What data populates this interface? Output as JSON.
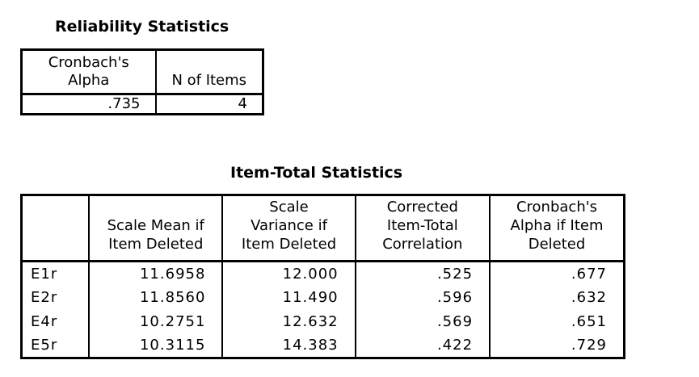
{
  "reliability": {
    "title": "Reliability Statistics",
    "headers": [
      "Cronbach's\nAlpha",
      "N of Items"
    ],
    "values": [
      ".735",
      "4"
    ]
  },
  "item_total": {
    "title": "Item-Total Statistics",
    "headers": [
      "",
      "Scale Mean if Item Deleted",
      "Scale Variance if Item Deleted",
      "Corrected Item-Total Correlation",
      "Cronbach's Alpha if Item Deleted"
    ],
    "header_lines": [
      [],
      [
        "Scale Mean if",
        "Item Deleted"
      ],
      [
        "Scale",
        "Variance if",
        "Item Deleted"
      ],
      [
        "Corrected",
        "Item-Total",
        "Correlation"
      ],
      [
        "Cronbach's",
        "Alpha if Item",
        "Deleted"
      ]
    ],
    "rows": [
      {
        "label": "E1r",
        "mean": "11.6958",
        "variance": "12.000",
        "correlation": ".525",
        "alpha": ".677"
      },
      {
        "label": "E2r",
        "mean": "11.8560",
        "variance": "11.490",
        "correlation": ".596",
        "alpha": ".632"
      },
      {
        "label": "E4r",
        "mean": "10.2751",
        "variance": "12.632",
        "correlation": ".569",
        "alpha": ".651"
      },
      {
        "label": "E5r",
        "mean": "10.3115",
        "variance": "14.383",
        "correlation": ".422",
        "alpha": ".729"
      }
    ]
  }
}
